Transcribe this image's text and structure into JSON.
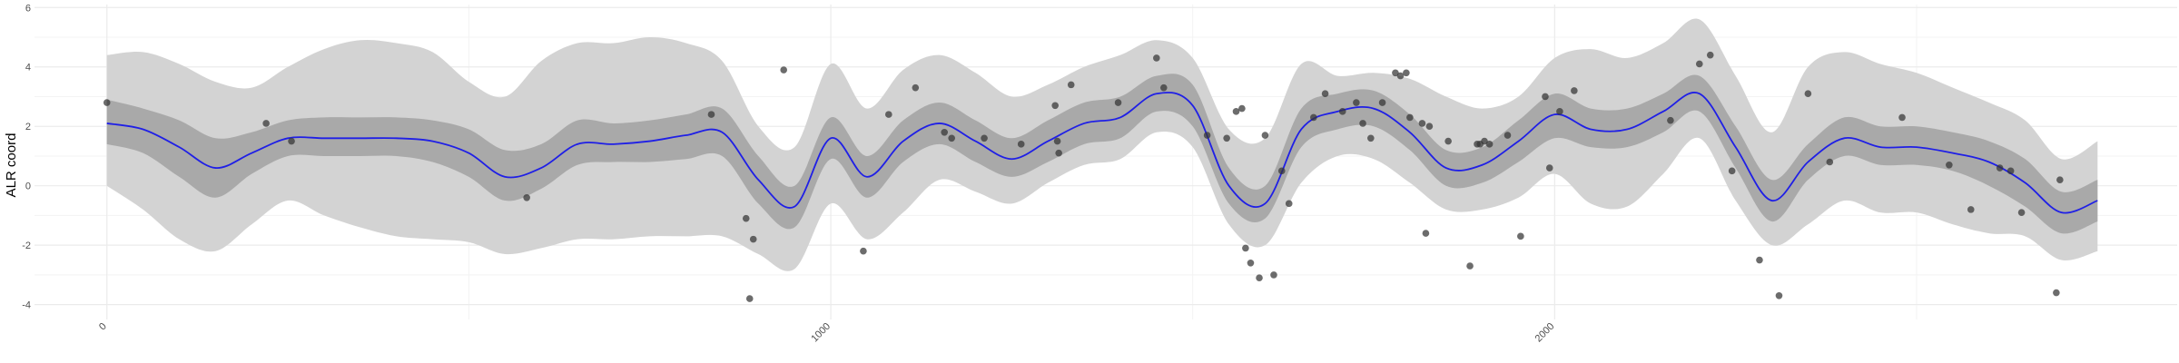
{
  "chart_data": {
    "type": "line",
    "title": "",
    "xlabel": "",
    "ylabel": "ALR coord",
    "xlim": [
      -100,
      2860
    ],
    "ylim": [
      -4.5,
      6.1
    ],
    "x_ticks": [
      0,
      1000,
      2000
    ],
    "x_tick_labels": [
      "0",
      "1000",
      "2000"
    ],
    "y_ticks": [
      -4,
      -2,
      0,
      2,
      4,
      6
    ],
    "y_tick_labels": [
      "-4",
      "-2",
      "0",
      "2",
      "4",
      "6"
    ],
    "grid": true,
    "legend": "none",
    "colors": {
      "line": "#1f1fe6",
      "inner_band": "#a9a9a9",
      "outer_band": "#d3d3d3",
      "points": "#333333",
      "grid": "#ebebeb"
    },
    "mean": {
      "x": [
        0,
        50,
        100,
        150,
        200,
        250,
        300,
        350,
        400,
        450,
        500,
        550,
        600,
        650,
        700,
        750,
        800,
        850,
        900,
        950,
        1000,
        1050,
        1100,
        1150,
        1200,
        1250,
        1300,
        1350,
        1400,
        1450,
        1500,
        1550,
        1600,
        1650,
        1700,
        1750,
        1800,
        1850,
        1900,
        1950,
        2000,
        2050,
        2100,
        2150,
        2200,
        2250,
        2300,
        2350,
        2400,
        2450,
        2500,
        2550,
        2600,
        2650,
        2700,
        2750
      ],
      "y": [
        2.1,
        1.9,
        1.3,
        0.6,
        1.1,
        1.6,
        1.6,
        1.6,
        1.6,
        1.5,
        1.1,
        0.3,
        0.6,
        1.4,
        1.4,
        1.5,
        1.7,
        1.8,
        0.2,
        -0.7,
        1.6,
        0.3,
        1.5,
        2.1,
        1.5,
        0.9,
        1.5,
        2.1,
        2.3,
        3.1,
        2.7,
        0.0,
        -0.6,
        1.9,
        2.5,
        2.6,
        1.8,
        0.6,
        0.7,
        1.5,
        2.4,
        1.9,
        1.9,
        2.5,
        3.1,
        1.3,
        -0.5,
        0.8,
        1.6,
        1.3,
        1.3,
        1.1,
        0.8,
        0.1,
        -0.9,
        -0.5
      ],
      "lower50": [
        1.4,
        1.1,
        0.3,
        -0.4,
        0.4,
        1.0,
        1.0,
        1.0,
        1.0,
        0.8,
        0.3,
        -0.5,
        -0.1,
        0.7,
        0.8,
        0.8,
        0.9,
        1.0,
        -0.6,
        -1.4,
        0.9,
        -0.4,
        0.8,
        1.4,
        0.8,
        0.3,
        0.8,
        1.4,
        1.6,
        2.5,
        2.0,
        -0.6,
        -1.1,
        1.3,
        1.9,
        2.0,
        1.2,
        0.0,
        0.1,
        0.8,
        1.6,
        1.3,
        1.3,
        1.8,
        2.5,
        0.6,
        -1.2,
        0.2,
        1.0,
        0.7,
        0.7,
        0.5,
        0.0,
        -0.7,
        -1.6,
        -1.2
      ],
      "upper50": [
        2.9,
        2.6,
        2.2,
        1.6,
        1.8,
        2.2,
        2.3,
        2.3,
        2.3,
        2.2,
        1.9,
        1.2,
        1.4,
        2.2,
        2.1,
        2.2,
        2.4,
        2.6,
        1.0,
        0.0,
        2.3,
        1.0,
        2.2,
        2.8,
        2.2,
        1.6,
        2.2,
        2.8,
        3.0,
        3.7,
        3.4,
        0.6,
        0.0,
        2.6,
        3.1,
        3.2,
        2.4,
        1.2,
        1.3,
        2.2,
        3.1,
        2.6,
        2.6,
        3.1,
        3.7,
        2.0,
        0.2,
        1.4,
        2.3,
        2.0,
        2.0,
        1.8,
        1.5,
        0.9,
        -0.2,
        0.2
      ],
      "lower95": [
        0.0,
        -0.8,
        -1.8,
        -2.2,
        -1.3,
        -0.5,
        -1.0,
        -1.4,
        -1.7,
        -1.8,
        -1.9,
        -2.3,
        -2.1,
        -1.8,
        -1.8,
        -1.7,
        -1.7,
        -1.7,
        -2.3,
        -2.8,
        -0.6,
        -1.8,
        -0.9,
        0.2,
        -0.2,
        -0.6,
        0.1,
        0.7,
        0.9,
        1.8,
        1.3,
        -1.3,
        -2.0,
        0.1,
        1.0,
        0.9,
        0.1,
        -0.8,
        -0.8,
        -0.4,
        0.4,
        -0.6,
        -0.7,
        0.4,
        1.6,
        -0.5,
        -2.0,
        -1.3,
        -0.5,
        -0.9,
        -0.9,
        -1.3,
        -1.6,
        -1.7,
        -2.5,
        -2.2
      ],
      "upper95": [
        4.4,
        4.5,
        4.1,
        3.5,
        3.3,
        4.0,
        4.6,
        4.9,
        4.8,
        4.5,
        3.5,
        3.0,
        4.2,
        4.8,
        4.8,
        5.0,
        4.8,
        4.2,
        2.0,
        1.3,
        4.1,
        2.6,
        3.9,
        4.4,
        3.8,
        3.0,
        3.4,
        4.0,
        4.4,
        4.9,
        4.3,
        1.9,
        1.6,
        4.1,
        3.7,
        3.8,
        3.6,
        3.0,
        2.6,
        3.0,
        4.3,
        4.6,
        4.3,
        4.8,
        5.6,
        3.7,
        1.8,
        4.0,
        4.5,
        4.1,
        3.8,
        3.3,
        2.8,
        2.2,
        0.9,
        1.5
      ]
    },
    "points": {
      "x": [
        0,
        220,
        255,
        580,
        835,
        883,
        888,
        893,
        935,
        1045,
        1080,
        1117,
        1157,
        1167,
        1212,
        1263,
        1310,
        1313,
        1315,
        1332,
        1397,
        1450,
        1460,
        1520,
        1547,
        1560,
        1568,
        1573,
        1580,
        1592,
        1600,
        1612,
        1623,
        1633,
        1667,
        1683,
        1707,
        1726,
        1735,
        1746,
        1762,
        1780,
        1787,
        1795,
        1800,
        1817,
        1822,
        1827,
        1853,
        1883,
        1893,
        1897,
        1903,
        1910,
        1935,
        1953,
        1987,
        1993,
        2007,
        2027,
        2160,
        2200,
        2215,
        2245,
        2283,
        2310,
        2350,
        2380,
        2480,
        2545,
        2575,
        2615,
        2630,
        2645,
        2693,
        2698
      ],
      "y": [
        2.8,
        2.1,
        1.5,
        -0.4,
        2.4,
        -1.1,
        -3.8,
        -1.8,
        3.9,
        -2.2,
        2.4,
        3.3,
        1.8,
        1.6,
        1.6,
        1.4,
        2.7,
        1.5,
        1.1,
        3.4,
        2.8,
        4.3,
        3.3,
        1.7,
        1.6,
        2.5,
        2.6,
        -2.1,
        -2.6,
        -3.1,
        1.7,
        -3.0,
        0.5,
        -0.6,
        2.3,
        3.1,
        2.5,
        2.8,
        2.1,
        1.6,
        2.8,
        3.8,
        3.7,
        3.8,
        2.3,
        2.1,
        -1.6,
        2.0,
        1.5,
        -2.7,
        1.4,
        1.4,
        1.5,
        1.4,
        1.7,
        -1.7,
        3.0,
        0.6,
        2.5,
        3.2,
        2.2,
        4.1,
        4.4,
        0.5,
        -2.5,
        -3.7,
        3.1,
        0.8,
        2.3,
        0.7,
        -0.8,
        0.6,
        0.5,
        -0.9,
        -3.6,
        0.2
      ]
    }
  }
}
